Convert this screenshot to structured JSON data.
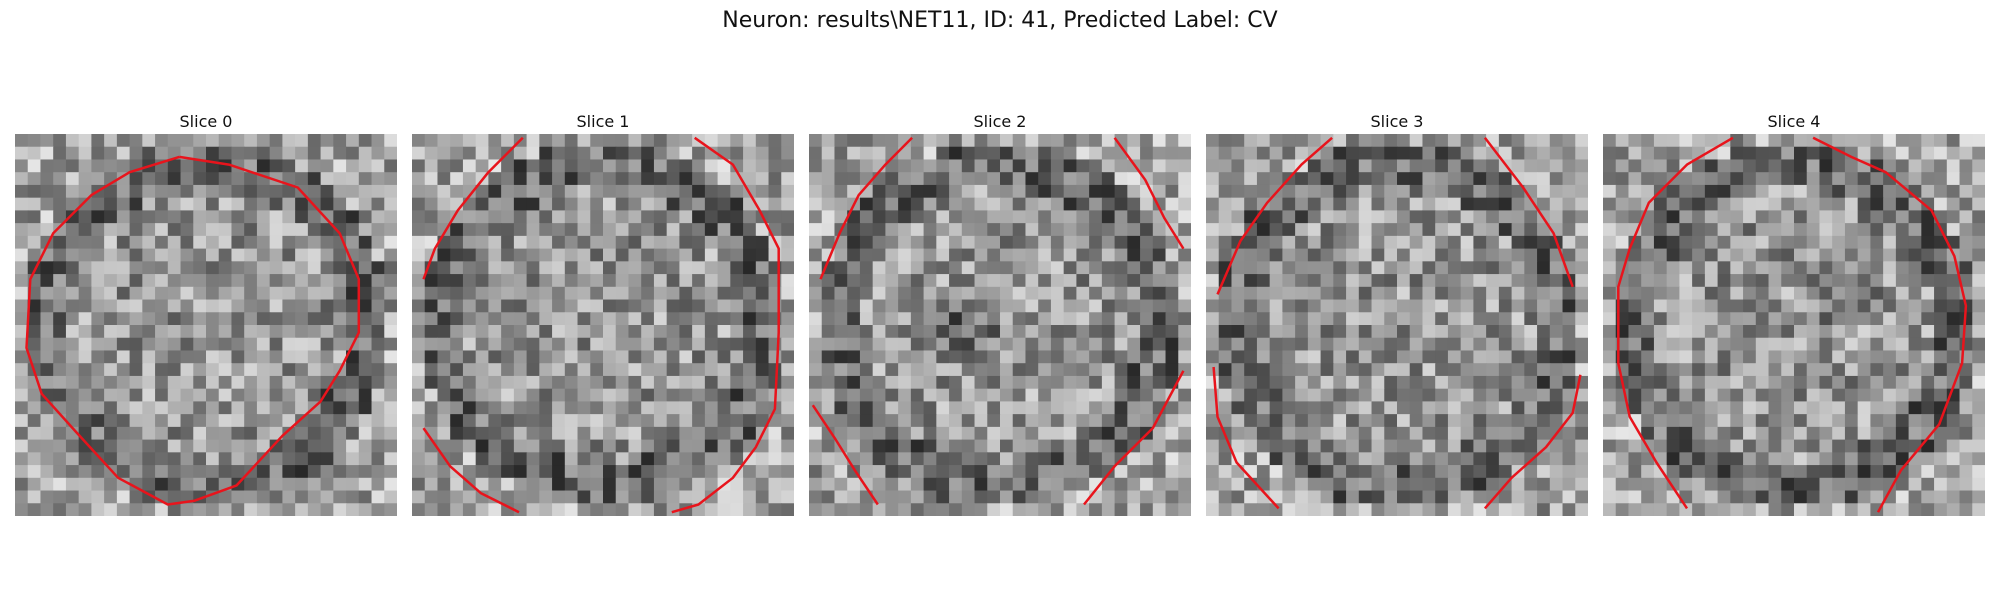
{
  "figure": {
    "title": "Neuron: results\\NET11, ID: 41, Predicted Label: CV"
  },
  "slices": [
    {
      "title": "Slice 0",
      "seed": 11,
      "dark_spot": null,
      "contour": [
        [
          [
            0.43,
            0.06
          ],
          [
            0.56,
            0.08
          ],
          [
            0.74,
            0.14
          ],
          [
            0.85,
            0.26
          ],
          [
            0.9,
            0.38
          ],
          [
            0.9,
            0.52
          ],
          [
            0.85,
            0.62
          ],
          [
            0.8,
            0.7
          ],
          [
            0.7,
            0.79
          ],
          [
            0.58,
            0.92
          ],
          [
            0.47,
            0.96
          ],
          [
            0.4,
            0.97
          ],
          [
            0.27,
            0.9
          ],
          [
            0.16,
            0.78
          ],
          [
            0.07,
            0.68
          ],
          [
            0.03,
            0.56
          ],
          [
            0.04,
            0.38
          ],
          [
            0.1,
            0.26
          ],
          [
            0.2,
            0.16
          ],
          [
            0.3,
            0.1
          ],
          [
            0.43,
            0.06
          ]
        ]
      ]
    },
    {
      "title": "Slice 1",
      "seed": 23,
      "dark_spot": null,
      "contour": [
        [
          [
            0.29,
            0.01
          ],
          [
            0.2,
            0.1
          ],
          [
            0.12,
            0.2
          ],
          [
            0.06,
            0.3
          ],
          [
            0.03,
            0.38
          ]
        ],
        [
          [
            0.74,
            0.01
          ],
          [
            0.84,
            0.08
          ],
          [
            0.91,
            0.2
          ],
          [
            0.96,
            0.3
          ],
          [
            0.96,
            0.52
          ],
          [
            0.95,
            0.72
          ],
          [
            0.9,
            0.82
          ],
          [
            0.84,
            0.9
          ],
          [
            0.75,
            0.97
          ],
          [
            0.68,
            0.99
          ]
        ],
        [
          [
            0.03,
            0.77
          ],
          [
            0.1,
            0.87
          ],
          [
            0.18,
            0.94
          ],
          [
            0.28,
            0.99
          ]
        ]
      ]
    },
    {
      "title": "Slice 2",
      "seed": 37,
      "dark_spot": [
        0.42,
        0.5
      ],
      "contour": [
        [
          [
            0.27,
            0.01
          ],
          [
            0.2,
            0.08
          ],
          [
            0.13,
            0.16
          ],
          [
            0.08,
            0.26
          ],
          [
            0.03,
            0.38
          ]
        ],
        [
          [
            0.8,
            0.01
          ],
          [
            0.88,
            0.12
          ],
          [
            0.93,
            0.22
          ],
          [
            0.98,
            0.3
          ]
        ],
        [
          [
            0.01,
            0.71
          ],
          [
            0.07,
            0.8
          ],
          [
            0.12,
            0.88
          ],
          [
            0.18,
            0.97
          ]
        ],
        [
          [
            0.98,
            0.62
          ],
          [
            0.9,
            0.77
          ],
          [
            0.8,
            0.87
          ],
          [
            0.72,
            0.97
          ]
        ]
      ]
    },
    {
      "title": "Slice 3",
      "seed": 53,
      "dark_spot": null,
      "contour": [
        [
          [
            0.33,
            0.01
          ],
          [
            0.25,
            0.08
          ],
          [
            0.16,
            0.18
          ],
          [
            0.09,
            0.28
          ],
          [
            0.03,
            0.42
          ]
        ],
        [
          [
            0.73,
            0.01
          ],
          [
            0.83,
            0.14
          ],
          [
            0.91,
            0.26
          ],
          [
            0.96,
            0.4
          ]
        ],
        [
          [
            0.02,
            0.61
          ],
          [
            0.03,
            0.74
          ],
          [
            0.08,
            0.86
          ],
          [
            0.19,
            0.98
          ]
        ],
        [
          [
            0.98,
            0.63
          ],
          [
            0.96,
            0.73
          ],
          [
            0.89,
            0.82
          ],
          [
            0.8,
            0.9
          ],
          [
            0.73,
            0.98
          ]
        ]
      ]
    },
    {
      "title": "Slice 4",
      "seed": 71,
      "dark_spot": [
        0.64,
        0.42
      ],
      "contour": [
        [
          [
            0.55,
            0.01
          ],
          [
            0.65,
            0.06
          ],
          [
            0.74,
            0.1
          ],
          [
            0.86,
            0.2
          ],
          [
            0.92,
            0.32
          ],
          [
            0.95,
            0.45
          ],
          [
            0.94,
            0.6
          ],
          [
            0.88,
            0.76
          ],
          [
            0.78,
            0.88
          ],
          [
            0.72,
            0.99
          ]
        ],
        [
          [
            0.34,
            0.01
          ],
          [
            0.22,
            0.08
          ],
          [
            0.12,
            0.18
          ],
          [
            0.07,
            0.3
          ],
          [
            0.04,
            0.4
          ],
          [
            0.04,
            0.6
          ],
          [
            0.07,
            0.74
          ],
          [
            0.14,
            0.86
          ],
          [
            0.22,
            0.98
          ]
        ]
      ]
    }
  ],
  "colors": {
    "contour": "#e8141c"
  }
}
